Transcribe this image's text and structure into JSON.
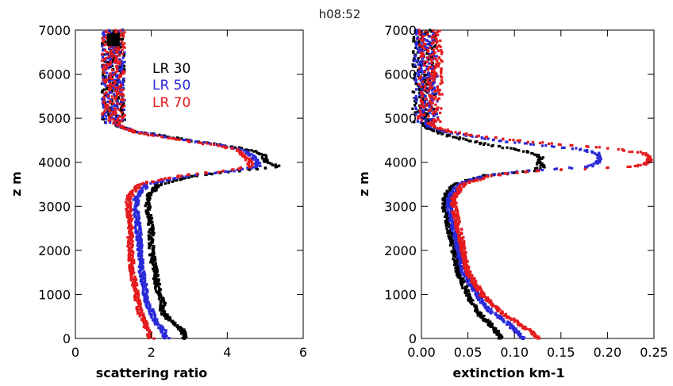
{
  "title": "h08:52",
  "colors": {
    "LR 30": "#000000",
    "LR 50": "#2a2ad8",
    "LR 70": "#e41a1c"
  },
  "chart_data": [
    {
      "type": "scatter",
      "title": "h08:52",
      "xlabel": "scattering ratio",
      "ylabel": "z m",
      "xlim": [
        0,
        6
      ],
      "ylim": [
        0,
        7000
      ],
      "xticks": [
        "0",
        "2",
        "4",
        "6"
      ],
      "yticks": [
        "0",
        "1000",
        "2000",
        "3000",
        "4000",
        "5000",
        "6000",
        "7000"
      ],
      "legend": {
        "placement": "top-center",
        "entries": [
          "LR 30",
          "LR 50",
          "LR 70"
        ]
      },
      "marker": {
        "x": 1.0,
        "y": 6780
      },
      "series": [
        {
          "name": "LR 30",
          "color": "#000000",
          "y": [
            0,
            200,
            400,
            600,
            800,
            1000,
            1500,
            2000,
            2500,
            3000,
            3200,
            3500,
            3700,
            3800,
            3900,
            4000,
            4100,
            4200,
            4300,
            4400,
            4500,
            4600,
            4700,
            4800,
            4900,
            5000,
            5500,
            6000,
            6500,
            7000
          ],
          "x": [
            2.9,
            2.8,
            2.5,
            2.3,
            2.3,
            2.2,
            2.1,
            2.0,
            2.0,
            1.9,
            1.9,
            2.2,
            3.2,
            4.2,
            5.4,
            5.0,
            5.0,
            4.9,
            4.5,
            3.8,
            3.0,
            2.3,
            1.6,
            1.2,
            1.05,
            1.0,
            1.0,
            1.0,
            1.0,
            1.0
          ]
        },
        {
          "name": "LR 50",
          "color": "#2a2ad8",
          "y": [
            0,
            200,
            400,
            600,
            800,
            1000,
            1500,
            2000,
            2500,
            3000,
            3200,
            3500,
            3700,
            3800,
            3900,
            4000,
            4100,
            4200,
            4300,
            4400,
            4500,
            4600,
            4700,
            4800,
            4900,
            5000,
            5500,
            6000,
            6500,
            7000
          ],
          "x": [
            2.4,
            2.3,
            2.1,
            2.0,
            1.9,
            1.85,
            1.75,
            1.7,
            1.65,
            1.6,
            1.6,
            1.9,
            3.0,
            4.1,
            4.8,
            4.8,
            4.7,
            4.6,
            4.3,
            3.7,
            2.9,
            2.2,
            1.6,
            1.2,
            1.05,
            1.0,
            1.0,
            1.0,
            1.0,
            1.0
          ]
        },
        {
          "name": "LR 70",
          "color": "#e41a1c",
          "y": [
            0,
            200,
            400,
            600,
            800,
            1000,
            1500,
            2000,
            2500,
            3000,
            3200,
            3500,
            3700,
            3800,
            3900,
            4000,
            4100,
            4200,
            4300,
            4400,
            4500,
            4600,
            4700,
            4800,
            4900,
            5000,
            5500,
            6000,
            6500,
            7000
          ],
          "x": [
            2.0,
            1.9,
            1.8,
            1.7,
            1.65,
            1.6,
            1.5,
            1.45,
            1.45,
            1.4,
            1.4,
            1.7,
            2.8,
            3.9,
            4.6,
            4.6,
            4.5,
            4.4,
            4.2,
            3.6,
            2.8,
            2.1,
            1.5,
            1.2,
            1.05,
            1.0,
            1.0,
            1.0,
            1.0,
            1.0
          ]
        }
      ]
    },
    {
      "type": "scatter",
      "title": "",
      "xlabel": "extinction km-1",
      "ylabel": "z m",
      "xlim": [
        0,
        0.25
      ],
      "ylim": [
        0,
        7000
      ],
      "xticks": [
        "0.00",
        "0.05",
        "0.10",
        "0.15",
        "0.20",
        "0.25"
      ],
      "yticks": [
        "0",
        "1000",
        "2000",
        "3000",
        "4000",
        "5000",
        "6000",
        "7000"
      ],
      "series": [
        {
          "name": "LR 30",
          "color": "#000000",
          "y": [
            0,
            200,
            400,
            600,
            800,
            1000,
            1500,
            2000,
            2500,
            3000,
            3200,
            3500,
            3700,
            3800,
            3900,
            4000,
            4100,
            4200,
            4300,
            4400,
            4500,
            4600,
            4700,
            4800,
            4900,
            5000,
            5500,
            6000,
            6500,
            7000
          ],
          "x": [
            0.085,
            0.08,
            0.07,
            0.06,
            0.055,
            0.05,
            0.04,
            0.035,
            0.03,
            0.025,
            0.025,
            0.035,
            0.07,
            0.12,
            0.13,
            0.125,
            0.13,
            0.12,
            0.1,
            0.07,
            0.05,
            0.03,
            0.015,
            0.005,
            0.003,
            0.003,
            0.003,
            0.003,
            0.003,
            0.003
          ]
        },
        {
          "name": "LR 50",
          "color": "#2a2ad8",
          "y": [
            0,
            200,
            400,
            600,
            800,
            1000,
            1500,
            2000,
            2500,
            3000,
            3200,
            3500,
            3700,
            3800,
            3900,
            4000,
            4100,
            4200,
            4300,
            4400,
            4500,
            4600,
            4700,
            4800,
            4900,
            5000,
            5500,
            6000,
            6500,
            7000
          ],
          "x": [
            0.11,
            0.1,
            0.09,
            0.075,
            0.065,
            0.06,
            0.045,
            0.04,
            0.035,
            0.03,
            0.03,
            0.04,
            0.07,
            0.11,
            0.18,
            0.19,
            0.19,
            0.19,
            0.17,
            0.12,
            0.08,
            0.05,
            0.025,
            0.01,
            0.005,
            0.005,
            0.005,
            0.005,
            0.005,
            0.005
          ]
        },
        {
          "name": "LR 70",
          "color": "#e41a1c",
          "y": [
            0,
            200,
            400,
            600,
            800,
            1000,
            1500,
            2000,
            2500,
            3000,
            3200,
            3500,
            3700,
            3800,
            3900,
            4000,
            4100,
            4200,
            4300,
            4400,
            4500,
            4600,
            4700,
            4800,
            4900,
            5000,
            5500,
            6000,
            6500,
            7000
          ],
          "x": [
            0.125,
            0.115,
            0.1,
            0.085,
            0.075,
            0.065,
            0.05,
            0.045,
            0.04,
            0.035,
            0.035,
            0.045,
            0.075,
            0.12,
            0.23,
            0.245,
            0.245,
            0.24,
            0.21,
            0.15,
            0.1,
            0.06,
            0.03,
            0.015,
            0.008,
            0.008,
            0.01,
            0.01,
            0.01,
            0.01
          ]
        }
      ]
    }
  ]
}
